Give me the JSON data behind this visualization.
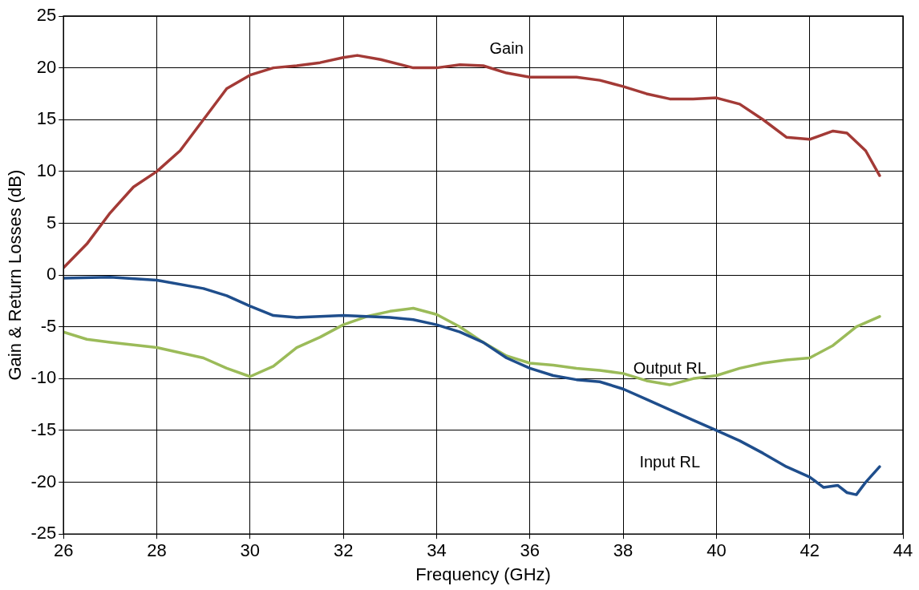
{
  "chart_data": {
    "type": "line",
    "xlabel": "Frequency (GHz)",
    "ylabel": "Gain & Return Losses (dB)",
    "xlim": [
      26,
      44
    ],
    "xticks": [
      26,
      28,
      30,
      32,
      34,
      36,
      38,
      40,
      42,
      44
    ],
    "ylim": [
      -25,
      25
    ],
    "yticks": [
      -25,
      -20,
      -15,
      -10,
      -5,
      0,
      5,
      10,
      15,
      20,
      25
    ],
    "grid": true,
    "legend": false,
    "marker": "none",
    "line_style": "solid",
    "series": [
      {
        "name": "Gain",
        "color": "#a33a36",
        "x": [
          26,
          26.5,
          27,
          27.5,
          28,
          28.5,
          29,
          29.5,
          30,
          30.5,
          31,
          31.5,
          32,
          32.3,
          32.8,
          33.5,
          34,
          34.5,
          35,
          35.5,
          36,
          37,
          37.5,
          38,
          38.5,
          39,
          39.5,
          40,
          40.5,
          41,
          41.5,
          42,
          42.5,
          42.8,
          43.2,
          43.5
        ],
        "values": [
          0.7,
          3,
          6,
          8.5,
          10,
          12,
          15,
          18,
          19.3,
          20,
          20.2,
          20.5,
          21,
          21.2,
          20.8,
          20,
          20,
          20.3,
          20.2,
          19.5,
          19.1,
          19.1,
          18.8,
          18.2,
          17.5,
          17,
          17,
          17.1,
          16.5,
          15,
          13.3,
          13.1,
          13.9,
          13.7,
          12,
          9.6
        ]
      },
      {
        "name": "Input RL",
        "color": "#1f4e8c",
        "x": [
          26,
          27,
          28,
          29,
          29.5,
          30,
          30.5,
          31,
          32,
          33,
          33.5,
          34,
          34.5,
          35,
          35.5,
          36,
          36.5,
          37,
          37.5,
          38,
          38.5,
          39,
          39.5,
          40,
          40.5,
          41,
          41.5,
          42,
          42.3,
          42.6,
          42.8,
          43,
          43.2,
          43.5
        ],
        "values": [
          -0.3,
          -0.2,
          -0.5,
          -1.3,
          -2,
          -3,
          -3.9,
          -4.1,
          -3.9,
          -4.1,
          -4.3,
          -4.8,
          -5.5,
          -6.5,
          -8,
          -9,
          -9.7,
          -10.1,
          -10.3,
          -11,
          -12,
          -13,
          -14,
          -15,
          -16,
          -17.2,
          -18.5,
          -19.5,
          -20.5,
          -20.3,
          -21,
          -21.2,
          -20,
          -18.5
        ]
      },
      {
        "name": "Output RL",
        "color": "#9bbb59",
        "x": [
          26,
          26.5,
          27,
          28,
          29,
          29.5,
          30,
          30.5,
          31,
          31.5,
          32,
          32.5,
          33,
          33.5,
          34,
          34.5,
          35,
          35.5,
          36,
          36.5,
          37,
          37.5,
          38,
          38.5,
          39,
          39.5,
          40,
          40.5,
          41,
          41.5,
          42,
          42.5,
          43,
          43.5
        ],
        "values": [
          -5.5,
          -6.2,
          -6.5,
          -7,
          -8,
          -9,
          -9.8,
          -8.8,
          -7,
          -6,
          -4.8,
          -4,
          -3.5,
          -3.2,
          -3.8,
          -5,
          -6.5,
          -7.8,
          -8.5,
          -8.7,
          -9,
          -9.2,
          -9.5,
          -10.2,
          -10.6,
          -10,
          -9.7,
          -9,
          -8.5,
          -8.2,
          -8,
          -6.8,
          -5,
          -4
        ]
      }
    ]
  }
}
